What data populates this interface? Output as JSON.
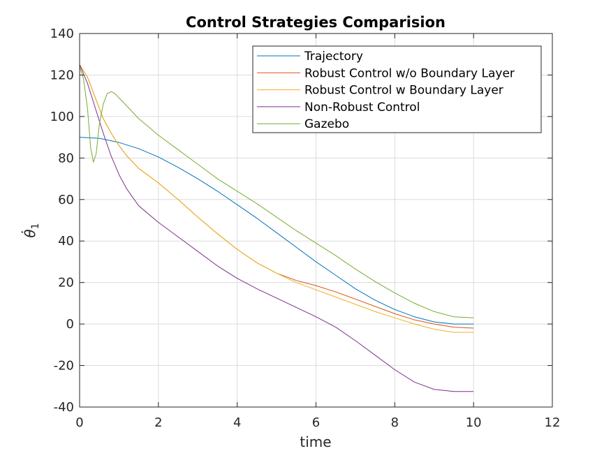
{
  "chart_data": {
    "type": "line",
    "title": "Control Strategies Comparision",
    "xlabel": "time",
    "ylabel": "θ̇",
    "ylabel_subscript": "1",
    "xlim": [
      0,
      12
    ],
    "ylim": [
      -40,
      140
    ],
    "xticks": [
      0,
      2,
      4,
      6,
      8,
      10,
      12
    ],
    "yticks": [
      -40,
      -20,
      0,
      20,
      40,
      60,
      80,
      100,
      120,
      140
    ],
    "grid": true,
    "legend_position": "top-right",
    "series": [
      {
        "name": "Trajectory",
        "color": "#0072bd",
        "x": [
          0,
          0.5,
          1,
          1.5,
          2,
          2.5,
          3,
          3.5,
          4,
          4.5,
          5,
          5.5,
          6,
          6.5,
          7,
          7.5,
          8,
          8.5,
          9,
          9.5,
          10
        ],
        "y": [
          90,
          89.5,
          87.5,
          84.5,
          80.5,
          75.5,
          70,
          64,
          57.5,
          51,
          44,
          37,
          30,
          23.5,
          17,
          11.5,
          7,
          3.5,
          1,
          0,
          0
        ]
      },
      {
        "name": "Robust Control w/o Boundary Layer",
        "color": "#d95319",
        "x": [
          0,
          0.2,
          0.4,
          0.6,
          0.8,
          1,
          1.2,
          1.5,
          2,
          2.5,
          3,
          3.5,
          4,
          4.5,
          5,
          5.5,
          6,
          6.5,
          7,
          7.5,
          8,
          8.5,
          9,
          9.5,
          10
        ],
        "y": [
          125,
          119,
          109,
          99,
          92,
          86,
          81,
          75,
          68,
          60,
          51.5,
          43.5,
          36,
          29.5,
          24.5,
          21,
          18.5,
          15.5,
          12,
          8.5,
          5,
          2,
          0,
          -1.5,
          -2
        ]
      },
      {
        "name": "Robust Control w Boundary Layer",
        "color": "#edb120",
        "x": [
          0,
          0.2,
          0.4,
          0.6,
          0.8,
          1,
          1.2,
          1.5,
          2,
          2.5,
          3,
          3.5,
          4,
          4.5,
          5,
          5.5,
          6,
          6.5,
          7,
          7.5,
          8,
          8.5,
          9,
          9.5,
          10
        ],
        "y": [
          125,
          119,
          109,
          99,
          92,
          86,
          81,
          75,
          68,
          60,
          51.5,
          43.5,
          36,
          29.5,
          24.5,
          20,
          16.5,
          13,
          9.5,
          6,
          3,
          0,
          -2.5,
          -4,
          -4
        ]
      },
      {
        "name": "Non-Robust Control",
        "color": "#7e2f8e",
        "x": [
          0,
          0.2,
          0.4,
          0.6,
          0.8,
          1,
          1.2,
          1.5,
          2,
          2.5,
          3,
          3.5,
          4,
          4.5,
          5,
          5.5,
          6,
          6.5,
          7,
          7.5,
          8,
          8.5,
          9,
          9.5,
          10
        ],
        "y": [
          125,
          116,
          104,
          92,
          81,
          72,
          65,
          57,
          49,
          42,
          35,
          28,
          22,
          17,
          12.5,
          8,
          3.5,
          -1.5,
          -8,
          -15,
          -22,
          -28,
          -31.5,
          -32.5,
          -32.5
        ]
      },
      {
        "name": "Gazebo",
        "color": "#77ac30",
        "x": [
          0,
          0.1,
          0.2,
          0.28,
          0.35,
          0.42,
          0.5,
          0.6,
          0.7,
          0.8,
          0.9,
          1,
          1.2,
          1.5,
          2,
          2.5,
          3,
          3.5,
          4,
          4.5,
          5,
          5.5,
          6,
          6.5,
          7,
          7.5,
          8,
          8.5,
          9,
          9.5,
          10
        ],
        "y": [
          124,
          118,
          104,
          85,
          78,
          82,
          96,
          106,
          111,
          112,
          111,
          109,
          105,
          99,
          91,
          84,
          77,
          70,
          64,
          58,
          51.5,
          45,
          39,
          33,
          26.5,
          20.5,
          15,
          10,
          6,
          3.5,
          3
        ]
      }
    ]
  }
}
